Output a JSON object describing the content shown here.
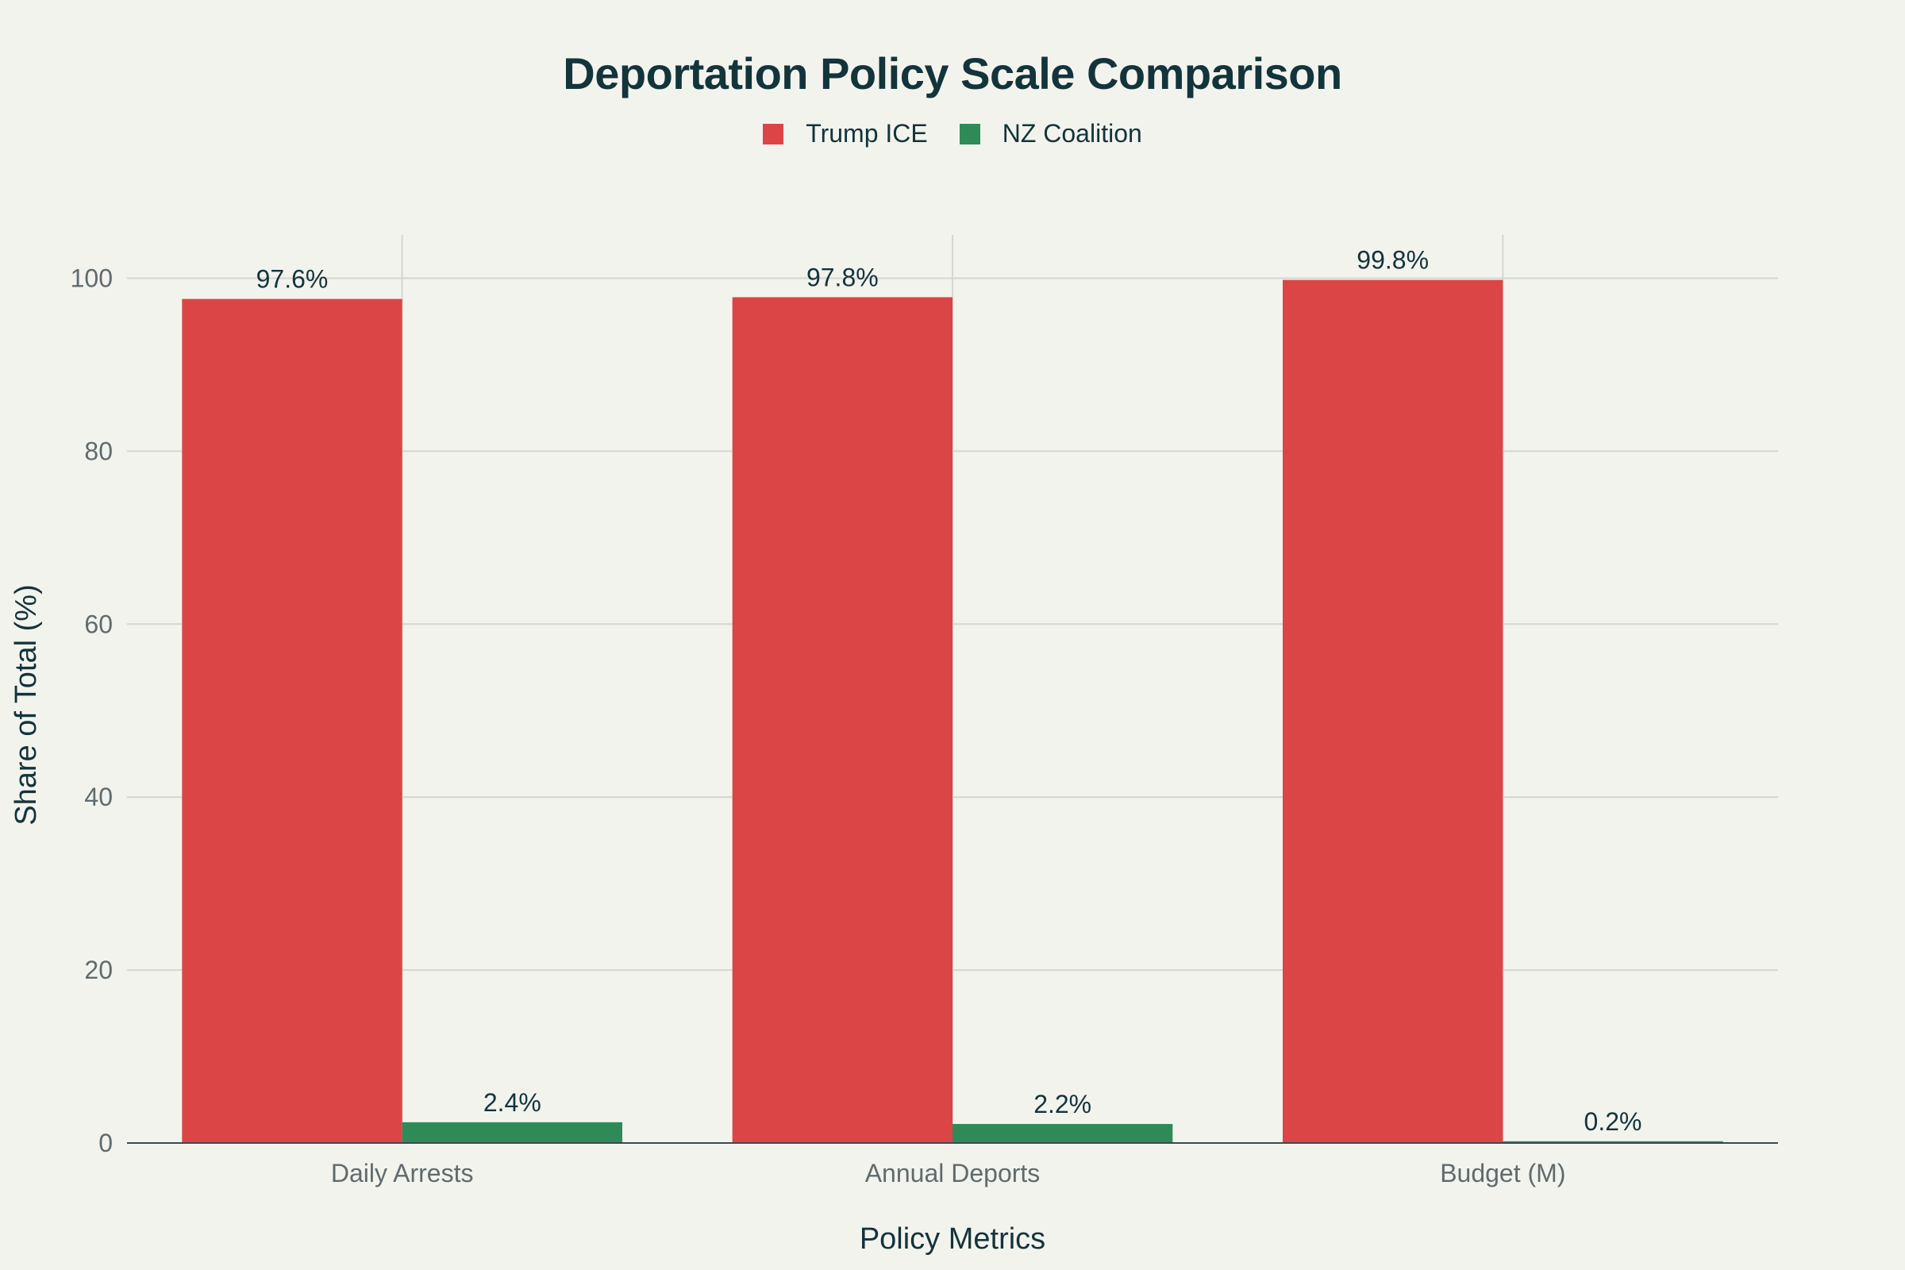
{
  "chart_data": {
    "type": "bar",
    "title": "Deportation Policy Scale Comparison",
    "xlabel": "Policy Metrics",
    "ylabel": "Share of Total (%)",
    "categories": [
      "Daily Arrests",
      "Annual Deports",
      "Budget (M)"
    ],
    "series": [
      {
        "name": "Trump ICE",
        "color": "#db4545",
        "values": [
          97.6,
          97.8,
          99.8
        ],
        "labels": [
          "97.6%",
          "97.8%",
          "99.8%"
        ]
      },
      {
        "name": "NZ Coalition",
        "color": "#2e8b57",
        "values": [
          2.4,
          2.2,
          0.2
        ],
        "labels": [
          "2.4%",
          "2.2%",
          "0.2%"
        ]
      }
    ],
    "ylim": [
      0,
      105
    ],
    "yticks": [
      0,
      20,
      40,
      60,
      80,
      100
    ],
    "grid": true,
    "legend": "top-center"
  }
}
